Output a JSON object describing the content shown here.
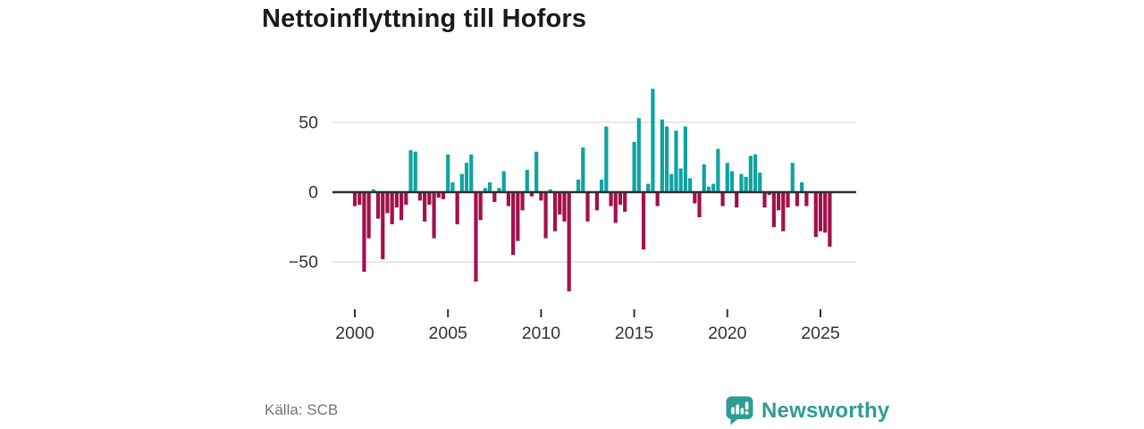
{
  "title": "Nettoinflyttning till Hofors",
  "footer": {
    "source": "Källa: SCB",
    "brand": "Newsworthy"
  },
  "colors": {
    "positive_bar": "#0fa3a1",
    "negative_bar": "#a2104b",
    "axis": "#2e2e2e",
    "grid": "#dcdcdc",
    "tick": "#333333",
    "tick_label": "#333333",
    "title_text": "#1a1a1a",
    "source_text": "#757575",
    "brand_teal": "#2f9c92"
  },
  "chart_data": {
    "type": "bar",
    "title": "Nettoinflyttning till Hofors",
    "xlabel": "",
    "ylabel": "",
    "ylim": [
      -75,
      80
    ],
    "grid": "horizontal gridlines at 50 and -50, dark zero axis",
    "legend": "none",
    "yticks": [
      50,
      0,
      -50
    ],
    "xticks": [
      "2000",
      "2005",
      "2010",
      "2015",
      "2020",
      "2025"
    ],
    "categories": [
      "2000-Q1",
      "2000-Q2",
      "2000-Q3",
      "2000-Q4",
      "2001-Q1",
      "2001-Q2",
      "2001-Q3",
      "2001-Q4",
      "2002-Q1",
      "2002-Q2",
      "2002-Q3",
      "2002-Q4",
      "2003-Q1",
      "2003-Q2",
      "2003-Q3",
      "2003-Q4",
      "2004-Q1",
      "2004-Q2",
      "2004-Q3",
      "2004-Q4",
      "2005-Q1",
      "2005-Q2",
      "2005-Q3",
      "2005-Q4",
      "2006-Q1",
      "2006-Q2",
      "2006-Q3",
      "2006-Q4",
      "2007-Q1",
      "2007-Q2",
      "2007-Q3",
      "2007-Q4",
      "2008-Q1",
      "2008-Q2",
      "2008-Q3",
      "2008-Q4",
      "2009-Q1",
      "2009-Q2",
      "2009-Q3",
      "2009-Q4",
      "2010-Q1",
      "2010-Q2",
      "2010-Q3",
      "2010-Q4",
      "2011-Q1",
      "2011-Q2",
      "2011-Q3",
      "2011-Q4",
      "2012-Q1",
      "2012-Q2",
      "2012-Q3",
      "2012-Q4",
      "2013-Q1",
      "2013-Q2",
      "2013-Q3",
      "2013-Q4",
      "2014-Q1",
      "2014-Q2",
      "2014-Q3",
      "2014-Q4",
      "2015-Q1",
      "2015-Q2",
      "2015-Q3",
      "2015-Q4",
      "2016-Q1",
      "2016-Q2",
      "2016-Q3",
      "2016-Q4",
      "2017-Q1",
      "2017-Q2",
      "2017-Q3",
      "2017-Q4",
      "2018-Q1",
      "2018-Q2",
      "2018-Q3",
      "2018-Q4",
      "2019-Q1",
      "2019-Q2",
      "2019-Q3",
      "2019-Q4",
      "2020-Q1",
      "2020-Q2",
      "2020-Q3",
      "2020-Q4",
      "2021-Q1",
      "2021-Q2",
      "2021-Q3",
      "2021-Q4",
      "2022-Q1",
      "2022-Q2",
      "2022-Q3",
      "2022-Q4",
      "2023-Q1",
      "2023-Q2",
      "2023-Q3",
      "2023-Q4",
      "2024-Q1",
      "2024-Q2",
      "2024-Q3",
      "2024-Q4",
      "2025-Q1",
      "2025-Q2",
      "2025-Q3"
    ],
    "values": [
      -10,
      -9,
      -57,
      -33,
      2,
      -19,
      -48,
      -15,
      -23,
      -11,
      -20,
      -9,
      30,
      29,
      -6,
      -21,
      -9,
      -33,
      -4,
      -5,
      27,
      7,
      -23,
      13,
      21,
      27,
      -64,
      -20,
      3,
      7,
      -7,
      3,
      15,
      -10,
      -45,
      -35,
      -13,
      16,
      -3,
      29,
      -6,
      -33,
      2,
      -28,
      -16,
      -21,
      -71,
      0,
      9,
      32,
      -21,
      0,
      -13,
      9,
      47,
      -10,
      -22,
      -9,
      -14,
      0,
      36,
      53,
      -41,
      6,
      74,
      -10,
      52,
      47,
      13,
      44,
      17,
      47,
      10,
      -8,
      -18,
      20,
      4,
      6,
      31,
      -10,
      21,
      15,
      -11,
      13,
      11,
      26,
      27,
      14,
      -11,
      -2,
      -25,
      -13,
      -28,
      -11,
      21,
      -10,
      7,
      -10,
      0,
      -32,
      -28,
      -29,
      -39
    ]
  }
}
